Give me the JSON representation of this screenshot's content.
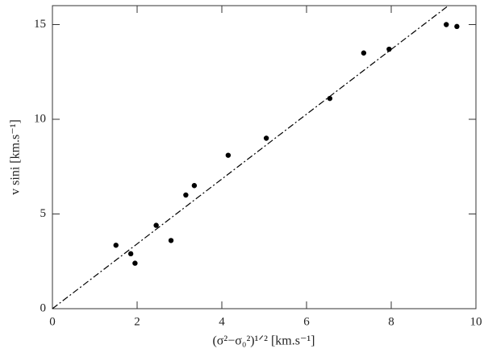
{
  "chart_data": {
    "type": "scatter",
    "xlabel": "(σ²−σ₀²)¹ᐟ² [km.s⁻¹]",
    "ylabel": "v sini [km.s⁻¹]",
    "xlim": [
      0,
      10
    ],
    "ylim": [
      0,
      16
    ],
    "xticks": [
      0,
      2,
      4,
      6,
      8,
      10
    ],
    "yticks": [
      0,
      5,
      10,
      15
    ],
    "series": [
      {
        "marker": "circle",
        "color": "#000000",
        "x": [
          1.5,
          1.85,
          1.95,
          2.45,
          2.8,
          3.15,
          3.35,
          4.15,
          5.05,
          6.55,
          7.35,
          7.95,
          9.3,
          9.55
        ],
        "values": [
          3.35,
          2.9,
          2.4,
          4.4,
          3.6,
          6.0,
          6.5,
          8.1,
          9.0,
          11.1,
          13.5,
          13.7,
          15.0,
          14.9
        ]
      },
      {
        "linestyle": "dashdot",
        "color": "#000000",
        "x": [
          0,
          9.35
        ],
        "values": [
          0,
          16
        ]
      }
    ]
  }
}
